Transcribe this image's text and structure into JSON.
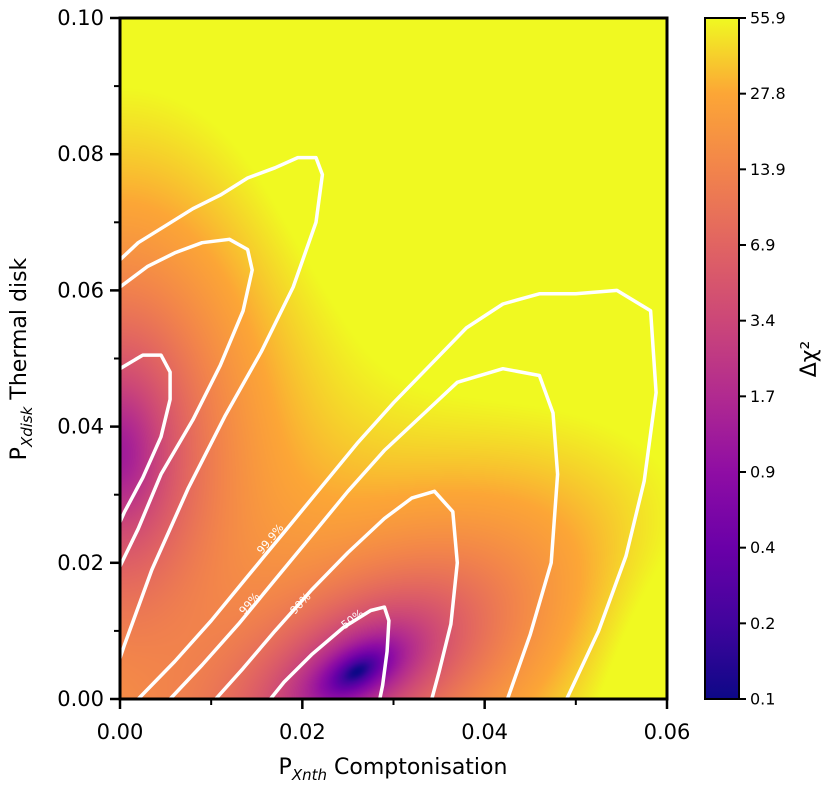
{
  "chart_data": {
    "type": "heatmap",
    "title": "",
    "xlabel": {
      "base": "P",
      "sub": "Xnth",
      "rest": " Comptonisation"
    },
    "ylabel": {
      "base": "P",
      "sub": "Xdisk",
      "rest": " Thermal disk"
    },
    "xlim": [
      0.0,
      0.06
    ],
    "ylim": [
      0.0,
      0.1
    ],
    "x_ticks": [
      "0.00",
      "0.02",
      "0.04",
      "0.06"
    ],
    "y_ticks": [
      "0.00",
      "0.02",
      "0.04",
      "0.06",
      "0.08",
      "0.10"
    ],
    "colorbar": {
      "label": "Δχ²",
      "scale": "log",
      "colormap": "plasma",
      "ticks": [
        "0.1",
        "0.2",
        "0.4",
        "0.9",
        "1.7",
        "3.4",
        "6.9",
        "13.9",
        "27.8",
        "55.9"
      ]
    },
    "components": [
      {
        "name": "Comptonisation minimum",
        "center": [
          0.026,
          0.004
        ],
        "min": 0.1
      },
      {
        "name": "Thermal disk minimum",
        "center": [
          0.0,
          0.036
        ],
        "min": 1.2
      }
    ],
    "contours": [
      {
        "label": "50%",
        "segments": [
          [
            [
              0.0165,
              0.0
            ],
            [
              0.018,
              0.0025
            ],
            [
              0.021,
              0.0065
            ],
            [
              0.0245,
              0.0105
            ],
            [
              0.0275,
              0.013
            ],
            [
              0.029,
              0.0135
            ],
            [
              0.0295,
              0.0115
            ],
            [
              0.0293,
              0.007
            ],
            [
              0.0288,
              0.002
            ],
            [
              0.0285,
              0.0
            ]
          ]
        ],
        "label_at": [
          0.0255,
          0.0117
        ]
      },
      {
        "label": "90%",
        "segments": [
          [
            [
              0.0105,
              0.0
            ],
            [
              0.0135,
              0.0045
            ],
            [
              0.017,
              0.01
            ],
            [
              0.021,
              0.016
            ],
            [
              0.025,
              0.0215
            ],
            [
              0.029,
              0.0265
            ],
            [
              0.032,
              0.0295
            ],
            [
              0.0345,
              0.0305
            ],
            [
              0.0365,
              0.0275
            ],
            [
              0.037,
              0.02
            ],
            [
              0.0363,
              0.011
            ],
            [
              0.035,
              0.004
            ],
            [
              0.0342,
              0.0
            ]
          ],
          [
            [
              0.0,
              0.0485
            ],
            [
              0.0025,
              0.0505
            ],
            [
              0.0045,
              0.0505
            ],
            [
              0.0055,
              0.048
            ],
            [
              0.0055,
              0.044
            ],
            [
              0.0045,
              0.0385
            ],
            [
              0.0025,
              0.0325
            ],
            [
              0.0005,
              0.0275
            ],
            [
              0.0,
              0.026
            ]
          ]
        ],
        "label_at": [
          0.0198,
          0.014
        ]
      },
      {
        "label": "99%",
        "segments": [
          [
            [
              0.0055,
              0.0
            ],
            [
              0.009,
              0.005
            ],
            [
              0.013,
              0.011
            ],
            [
              0.017,
              0.0175
            ],
            [
              0.021,
              0.024
            ],
            [
              0.025,
              0.0305
            ],
            [
              0.029,
              0.0365
            ],
            [
              0.033,
              0.0415
            ],
            [
              0.037,
              0.0465
            ],
            [
              0.042,
              0.0485
            ],
            [
              0.046,
              0.0475
            ],
            [
              0.0475,
              0.042
            ],
            [
              0.048,
              0.033
            ],
            [
              0.0473,
              0.02
            ],
            [
              0.045,
              0.0095
            ],
            [
              0.0425,
              0.0
            ]
          ],
          [
            [
              0.0,
              0.0605
            ],
            [
              0.003,
              0.0635
            ],
            [
              0.006,
              0.0655
            ],
            [
              0.009,
              0.067
            ],
            [
              0.012,
              0.0675
            ],
            [
              0.014,
              0.066
            ],
            [
              0.0145,
              0.063
            ],
            [
              0.0135,
              0.057
            ],
            [
              0.011,
              0.049
            ],
            [
              0.008,
              0.041
            ],
            [
              0.0045,
              0.033
            ],
            [
              0.002,
              0.025
            ],
            [
              0.0,
              0.0195
            ]
          ]
        ],
        "label_at": [
          0.0142,
          0.014
        ]
      },
      {
        "label": "99.9%",
        "segments": [
          [
            [
              0.002,
              0.0
            ],
            [
              0.006,
              0.0055
            ],
            [
              0.01,
              0.0115
            ],
            [
              0.014,
              0.018
            ],
            [
              0.018,
              0.0245
            ],
            [
              0.022,
              0.031
            ],
            [
              0.026,
              0.0375
            ],
            [
              0.03,
              0.0435
            ],
            [
              0.034,
              0.049
            ],
            [
              0.038,
              0.0545
            ],
            [
              0.042,
              0.058
            ],
            [
              0.046,
              0.0595
            ],
            [
              0.05,
              0.0595
            ],
            [
              0.0545,
              0.06
            ],
            [
              0.0582,
              0.057
            ],
            [
              0.0588,
              0.045
            ],
            [
              0.0575,
              0.032
            ],
            [
              0.0555,
              0.021
            ],
            [
              0.0525,
              0.01
            ],
            [
              0.049,
              0.0
            ]
          ],
          [
            [
              0.0,
              0.0645
            ],
            [
              0.002,
              0.067
            ],
            [
              0.005,
              0.0695
            ],
            [
              0.008,
              0.072
            ],
            [
              0.011,
              0.074
            ],
            [
              0.014,
              0.0765
            ],
            [
              0.017,
              0.078
            ],
            [
              0.0195,
              0.0795
            ],
            [
              0.0215,
              0.0795
            ],
            [
              0.0222,
              0.077
            ],
            [
              0.0215,
              0.07
            ],
            [
              0.019,
              0.0605
            ],
            [
              0.0155,
              0.051
            ],
            [
              0.0115,
              0.0415
            ],
            [
              0.0075,
              0.031
            ],
            [
              0.0035,
              0.019
            ],
            [
              0.0005,
              0.008
            ],
            [
              0.0,
              0.006
            ]
          ]
        ],
        "label_at": [
          0.0165,
          0.0235
        ]
      }
    ]
  }
}
